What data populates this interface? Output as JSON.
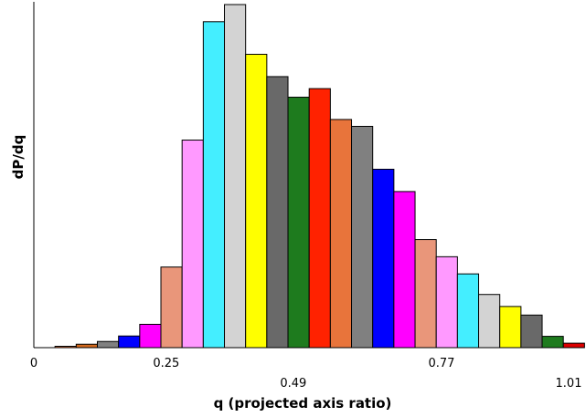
{
  "chart_data": {
    "type": "bar",
    "xlabel": "q (projected axis ratio)",
    "ylabel": "dP/dq",
    "xlim": [
      0,
      1.01
    ],
    "ylim": [
      0,
      100
    ],
    "x_ticks": [
      {
        "value": 0,
        "label": "0"
      },
      {
        "value": 0.25,
        "label": "0.25"
      },
      {
        "value": 0.49,
        "label": "0.49"
      },
      {
        "value": 0.77,
        "label": "0.77"
      },
      {
        "value": 1.01,
        "label": "1.01"
      }
    ],
    "bars": [
      {
        "x0": 0.04,
        "x1": 0.08,
        "value": 0.4,
        "color": "#e8743b"
      },
      {
        "x0": 0.08,
        "x1": 0.12,
        "value": 1.0,
        "color": "#d2691e"
      },
      {
        "x0": 0.12,
        "x1": 0.16,
        "value": 1.8,
        "color": "#808080"
      },
      {
        "x0": 0.16,
        "x1": 0.2,
        "value": 3.4,
        "color": "#0000ff"
      },
      {
        "x0": 0.2,
        "x1": 0.24,
        "value": 6.8,
        "color": "#ff00ff"
      },
      {
        "x0": 0.24,
        "x1": 0.28,
        "value": 23.5,
        "color": "#e9967a"
      },
      {
        "x0": 0.28,
        "x1": 0.32,
        "value": 60.5,
        "color": "#ff99ff"
      },
      {
        "x0": 0.32,
        "x1": 0.36,
        "value": 95.0,
        "color": "#44eeff"
      },
      {
        "x0": 0.36,
        "x1": 0.4,
        "value": 100.0,
        "color": "#d3d3d3"
      },
      {
        "x0": 0.4,
        "x1": 0.44,
        "value": 85.5,
        "color": "#ffff00"
      },
      {
        "x0": 0.44,
        "x1": 0.48,
        "value": 79.0,
        "color": "#696969"
      },
      {
        "x0": 0.48,
        "x1": 0.52,
        "value": 73.0,
        "color": "#1e7b1e"
      },
      {
        "x0": 0.52,
        "x1": 0.56,
        "value": 75.5,
        "color": "#ff2200"
      },
      {
        "x0": 0.56,
        "x1": 0.6,
        "value": 66.5,
        "color": "#e8743b"
      },
      {
        "x0": 0.6,
        "x1": 0.64,
        "value": 64.5,
        "color": "#808080"
      },
      {
        "x0": 0.64,
        "x1": 0.68,
        "value": 52.0,
        "color": "#0000ff"
      },
      {
        "x0": 0.68,
        "x1": 0.72,
        "value": 45.5,
        "color": "#ff00ff"
      },
      {
        "x0": 0.72,
        "x1": 0.76,
        "value": 31.5,
        "color": "#e9967a"
      },
      {
        "x0": 0.76,
        "x1": 0.8,
        "value": 26.5,
        "color": "#ff99ff"
      },
      {
        "x0": 0.8,
        "x1": 0.84,
        "value": 21.5,
        "color": "#44eeff"
      },
      {
        "x0": 0.84,
        "x1": 0.88,
        "value": 15.5,
        "color": "#d3d3d3"
      },
      {
        "x0": 0.88,
        "x1": 0.92,
        "value": 12.0,
        "color": "#ffff00"
      },
      {
        "x0": 0.92,
        "x1": 0.96,
        "value": 9.5,
        "color": "#696969"
      },
      {
        "x0": 0.96,
        "x1": 1.0,
        "value": 3.3,
        "color": "#1e7b1e"
      },
      {
        "x0": 1.0,
        "x1": 1.04,
        "value": 1.3,
        "color": "#dd0000"
      }
    ]
  }
}
